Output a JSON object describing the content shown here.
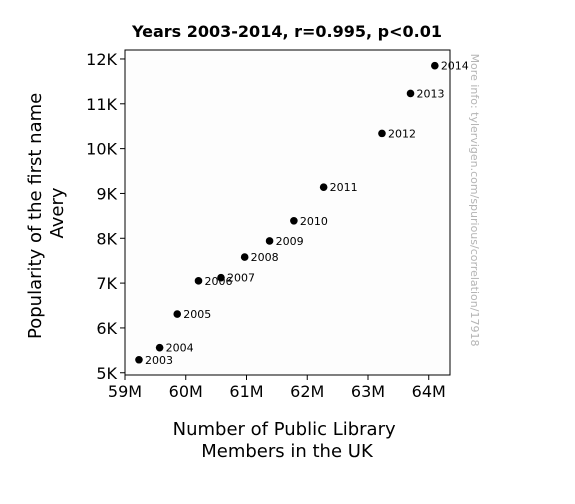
{
  "chart_data": {
    "type": "scatter",
    "title": "Years 2003-2014, r=0.995, p<0.01",
    "xlabel_lines": [
      "Number of Public Library",
      "Members in the UK"
    ],
    "ylabel_lines": [
      "Popularity of the first name",
      "Avery"
    ],
    "watermark": "More info: tylervigen.com/spurious/correlation/17918",
    "xlim": [
      59.0,
      64.35
    ],
    "ylim": [
      4950,
      12200
    ],
    "x_ticks": [
      {
        "value": 59,
        "label": "59M"
      },
      {
        "value": 60,
        "label": "60M"
      },
      {
        "value": 61,
        "label": "61M"
      },
      {
        "value": 62,
        "label": "62M"
      },
      {
        "value": 63,
        "label": "63M"
      },
      {
        "value": 64,
        "label": "64M"
      }
    ],
    "y_ticks": [
      {
        "value": 5000,
        "label": "5K"
      },
      {
        "value": 6000,
        "label": "6K"
      },
      {
        "value": 7000,
        "label": "7K"
      },
      {
        "value": 8000,
        "label": "8K"
      },
      {
        "value": 9000,
        "label": "9K"
      },
      {
        "value": 10000,
        "label": "10K"
      },
      {
        "value": 11000,
        "label": "11K"
      },
      {
        "value": 12000,
        "label": "12K"
      }
    ],
    "points": [
      {
        "label": "2003",
        "x": 59.23,
        "y": 5290
      },
      {
        "label": "2004",
        "x": 59.57,
        "y": 5560
      },
      {
        "label": "2005",
        "x": 59.86,
        "y": 6310
      },
      {
        "label": "2006",
        "x": 60.21,
        "y": 7050
      },
      {
        "label": "2007",
        "x": 60.58,
        "y": 7120
      },
      {
        "label": "2008",
        "x": 60.97,
        "y": 7580
      },
      {
        "label": "2009",
        "x": 61.38,
        "y": 7940
      },
      {
        "label": "2010",
        "x": 61.78,
        "y": 8390
      },
      {
        "label": "2011",
        "x": 62.27,
        "y": 9140
      },
      {
        "label": "2012",
        "x": 63.23,
        "y": 10340
      },
      {
        "label": "2013",
        "x": 63.7,
        "y": 11230
      },
      {
        "label": "2014",
        "x": 64.1,
        "y": 11850
      }
    ],
    "colors": {
      "marker": "#000000",
      "axis": "#000000",
      "plot_background": "#fdfdfd",
      "watermark": "#b4b4b4"
    },
    "grid": false,
    "legend": "none"
  }
}
